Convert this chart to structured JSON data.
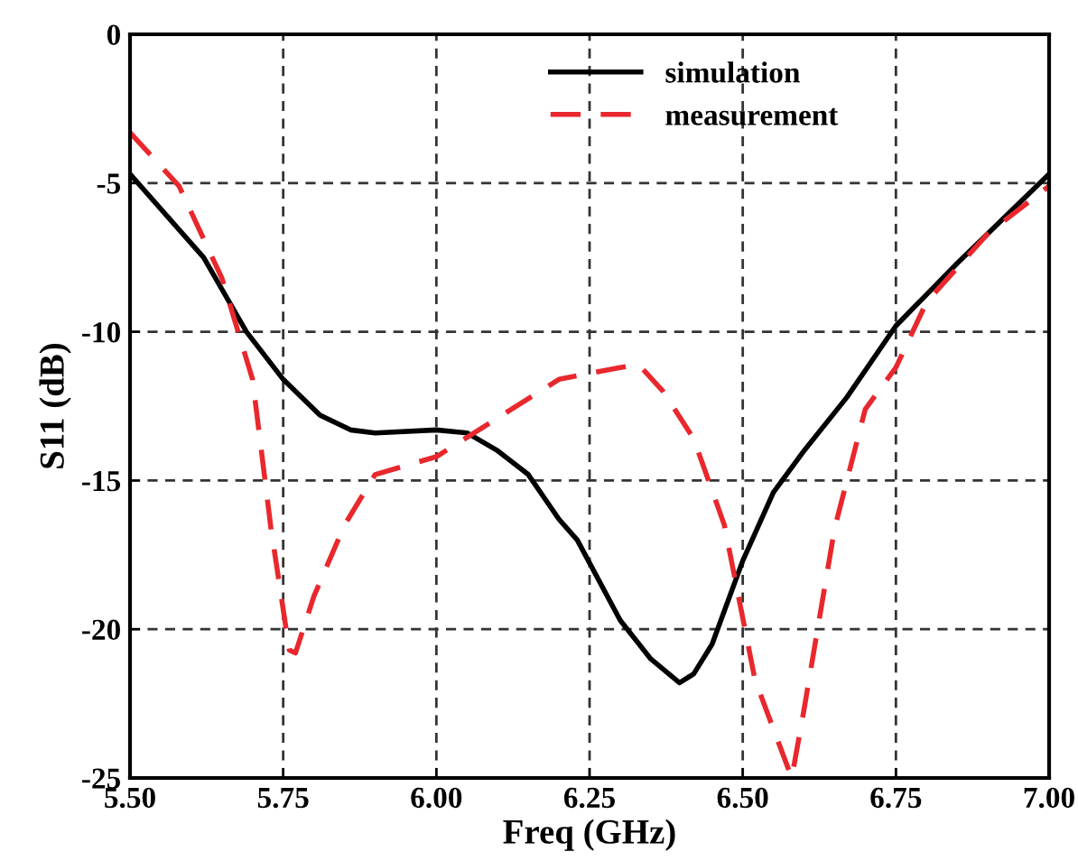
{
  "chart_data": {
    "type": "line",
    "xlabel": "Freq (GHz)",
    "ylabel": "S11 (dB)",
    "xlim": [
      5.5,
      7.0
    ],
    "xticks": [
      {
        "value": 5.5,
        "label": "5.50"
      },
      {
        "value": 5.75,
        "label": "5.75"
      },
      {
        "value": 6.0,
        "label": "6.00"
      },
      {
        "value": 6.25,
        "label": "6.25"
      },
      {
        "value": 6.5,
        "label": "6.50"
      },
      {
        "value": 6.75,
        "label": "6.75"
      },
      {
        "value": 7.0,
        "label": "7.00"
      }
    ],
    "ylim": [
      -25,
      0
    ],
    "yticks": [
      -25,
      -20,
      -15,
      -10,
      -5,
      0
    ],
    "grid": true,
    "legend": "top right",
    "series": [
      {
        "name": "simulation",
        "color": "#000000",
        "line_style": "solid",
        "x": [
          5.5,
          5.62,
          5.69,
          5.75,
          5.81,
          5.86,
          5.9,
          6.0,
          6.05,
          6.1,
          6.15,
          6.18,
          6.2,
          6.23,
          6.3,
          6.35,
          6.397,
          6.42,
          6.45,
          6.5,
          6.55,
          6.6,
          6.67,
          6.75,
          6.85,
          6.93,
          7.0
        ],
        "values": [
          -4.7,
          -7.5,
          -10.0,
          -11.6,
          -12.8,
          -13.3,
          -13.4,
          -13.3,
          -13.4,
          -14.0,
          -14.8,
          -15.7,
          -16.3,
          -17.0,
          -19.7,
          -21.0,
          -21.8,
          -21.5,
          -20.5,
          -17.7,
          -15.4,
          -14.0,
          -12.2,
          -9.8,
          -7.7,
          -6.1,
          -4.7
        ]
      },
      {
        "name": "measurement",
        "color": "#e8282d",
        "line_style": "dashed",
        "x": [
          5.5,
          5.58,
          5.65,
          5.7,
          5.73,
          5.76,
          5.77,
          5.8,
          5.85,
          5.9,
          6.0,
          6.1,
          6.2,
          6.25,
          6.3,
          6.33,
          6.37,
          6.42,
          6.47,
          6.52,
          6.58,
          6.6,
          6.65,
          6.7,
          6.75,
          6.8,
          6.9,
          7.0
        ],
        "values": [
          -3.3,
          -5.1,
          -8.2,
          -11.6,
          -16.6,
          -20.7,
          -20.8,
          -18.9,
          -16.5,
          -14.8,
          -14.2,
          -12.9,
          -11.6,
          -11.4,
          -11.2,
          -11.1,
          -12.0,
          -13.6,
          -16.5,
          -21.7,
          -25,
          -22.7,
          -16.6,
          -12.6,
          -11.2,
          -9.0,
          -6.7,
          -5.1
        ]
      }
    ]
  }
}
